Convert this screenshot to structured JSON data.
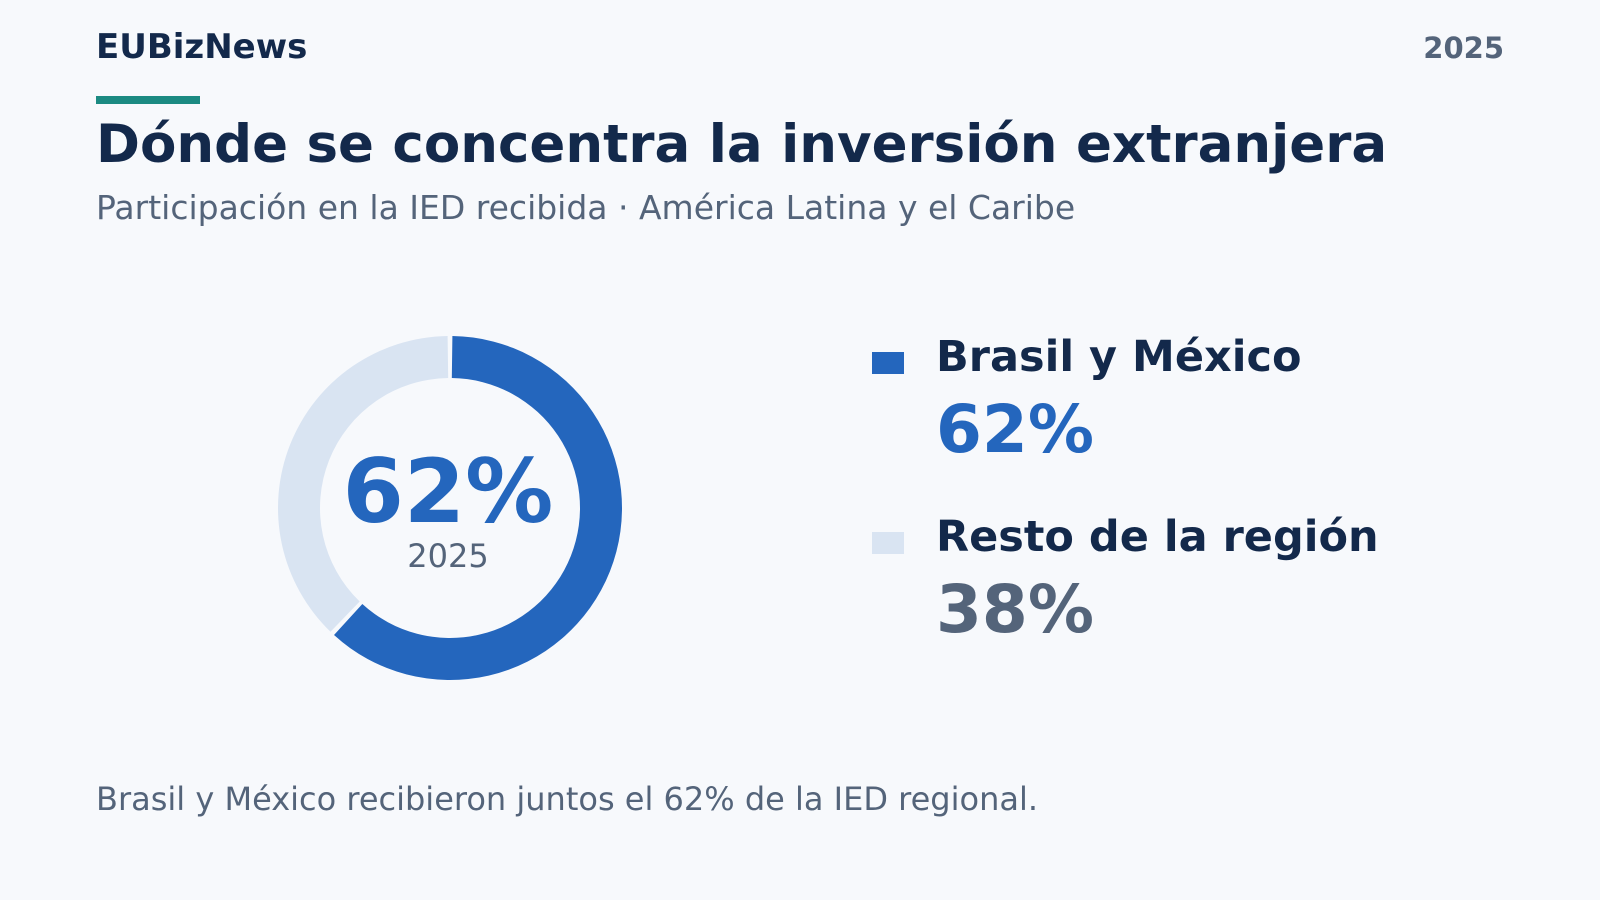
{
  "header": {
    "brand": "EUBizNews",
    "year": "2025"
  },
  "title": "Dónde se concentra la inversión extranjera",
  "subtitle": "Participación en la IED recibida · América Latina y el Caribe",
  "colors": {
    "accent": "#1b8a82",
    "primary": "#2466bd",
    "rest": "#d9e4f2",
    "text_dark": "#13294b",
    "text_muted": "#54647a"
  },
  "chart_data": {
    "type": "pie",
    "style": "donut",
    "title": "Dónde se concentra la inversión extranjera",
    "subtitle": "Participación en la IED recibida · América Latina y el Caribe",
    "center_value": "62%",
    "center_label": "2025",
    "legend_position": "right",
    "series": [
      {
        "name": "Brasil y México",
        "value": 62,
        "value_label": "62%",
        "color": "#2466bd"
      },
      {
        "name": "Resto de la región",
        "value": 38,
        "value_label": "38%",
        "color": "#d9e4f2"
      }
    ]
  },
  "footnote": "Brasil y México recibieron juntos el 62% de la IED regional."
}
